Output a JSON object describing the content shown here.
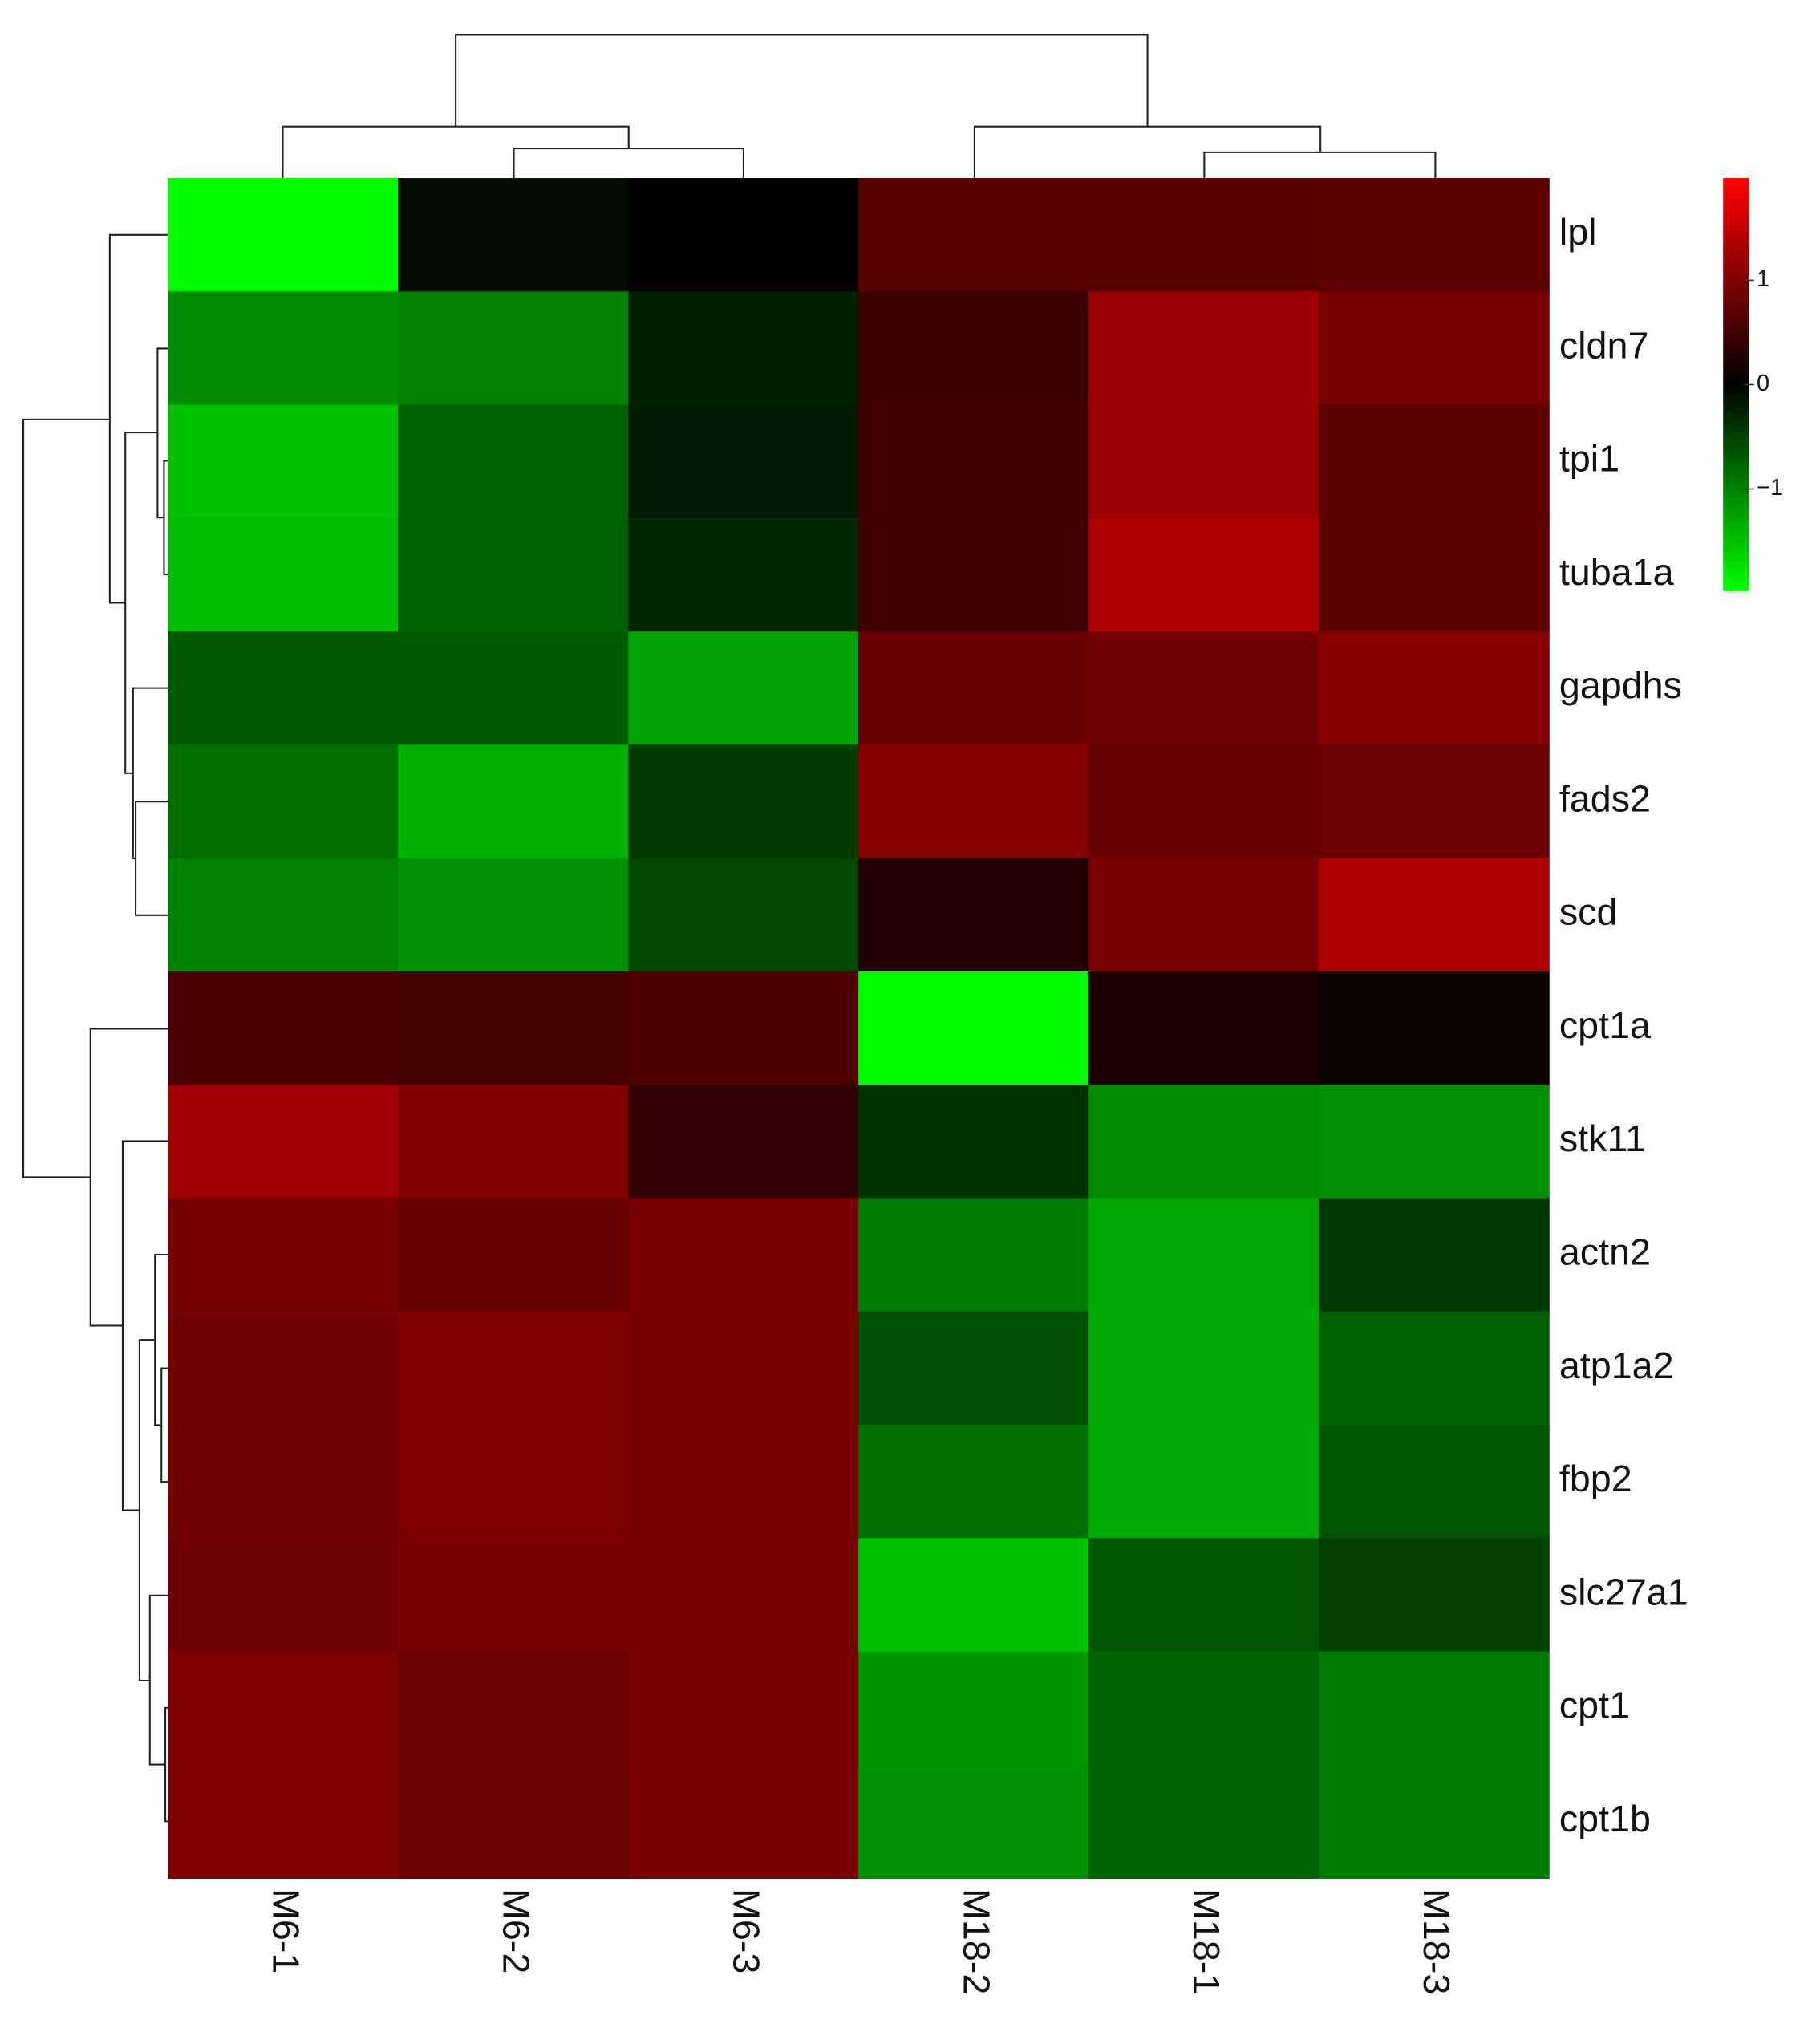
{
  "chart_data": {
    "type": "heatmap",
    "x": [
      "M6-1",
      "M6-2",
      "M6-3",
      "M18-2",
      "M18-1",
      "M18-3"
    ],
    "y": [
      "lpl",
      "cldn7",
      "tpi1",
      "tuba1a",
      "gapdhs",
      "fads2",
      "scd",
      "cpt1a",
      "stk11",
      "actn2",
      "atp1a2",
      "fbp2",
      "slc27a1",
      "cpt1",
      "cpt1b"
    ],
    "values": [
      [
        -1.95,
        -0.1,
        0.0,
        0.67,
        0.67,
        0.7
      ],
      [
        -1.08,
        -1.0,
        -0.25,
        0.45,
        1.2,
        0.92
      ],
      [
        -1.5,
        -0.75,
        -0.2,
        0.5,
        1.2,
        0.7
      ],
      [
        -1.45,
        -0.75,
        -0.3,
        0.5,
        1.35,
        0.7
      ],
      [
        -0.7,
        -0.7,
        -1.25,
        0.8,
        0.88,
        1.05
      ],
      [
        -0.88,
        -1.38,
        -0.45,
        1.05,
        0.8,
        0.83
      ],
      [
        -1.0,
        -1.13,
        -0.55,
        0.25,
        0.92,
        1.35
      ],
      [
        0.57,
        0.55,
        0.63,
        -1.95,
        0.19,
        0.08
      ],
      [
        1.25,
        1.0,
        0.38,
        -0.38,
        -1.08,
        -1.12
      ],
      [
        0.92,
        0.8,
        0.9,
        -0.96,
        -1.3,
        -0.44
      ],
      [
        0.88,
        0.96,
        0.9,
        -0.63,
        -1.32,
        -0.75
      ],
      [
        0.88,
        0.96,
        0.9,
        -0.88,
        -1.32,
        -0.67
      ],
      [
        0.83,
        0.94,
        0.9,
        -1.5,
        -0.67,
        -0.5
      ],
      [
        0.96,
        0.83,
        0.9,
        -1.17,
        -0.75,
        -0.97
      ],
      [
        0.96,
        0.83,
        0.94,
        -1.13,
        -0.75,
        -0.97
      ]
    ],
    "clim": [
      -1.98,
      1.98
    ],
    "cticks": [
      1,
      0,
      {
        "value": -1,
        "label": "−1"
      }
    ],
    "colors": {
      "low": "#00ff00",
      "mid": "#000000",
      "high": "#ff0000"
    }
  }
}
